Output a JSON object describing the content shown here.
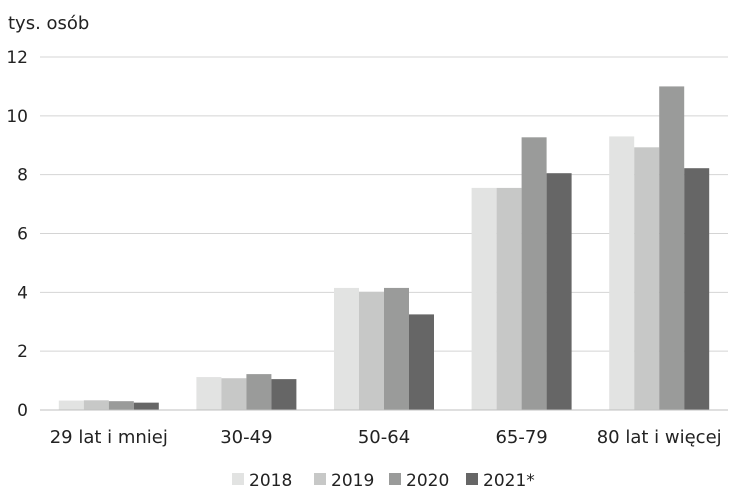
{
  "chart_data": {
    "type": "bar",
    "unit_label": "tys. osób",
    "categories": [
      "29 lat i mniej",
      "30-49",
      "50-64",
      "65-79",
      "80 lat i więcej"
    ],
    "series": [
      {
        "name": "2018",
        "color": "#e2e3e2",
        "values": [
          0.32,
          1.12,
          4.15,
          7.55,
          9.3
        ]
      },
      {
        "name": "2019",
        "color": "#c7c8c7",
        "values": [
          0.33,
          1.08,
          4.02,
          7.55,
          8.93
        ]
      },
      {
        "name": "2020",
        "color": "#9a9b9a",
        "values": [
          0.3,
          1.22,
          4.15,
          9.27,
          11.0
        ]
      },
      {
        "name": "2021*",
        "color": "#666666",
        "values": [
          0.25,
          1.05,
          3.25,
          8.05,
          8.22
        ]
      }
    ],
    "y_ticks": [
      "0",
      "2",
      "4",
      "6",
      "8",
      "10",
      "12"
    ],
    "ylim": [
      0,
      12
    ],
    "grid": true,
    "legend_position": "bottom"
  }
}
